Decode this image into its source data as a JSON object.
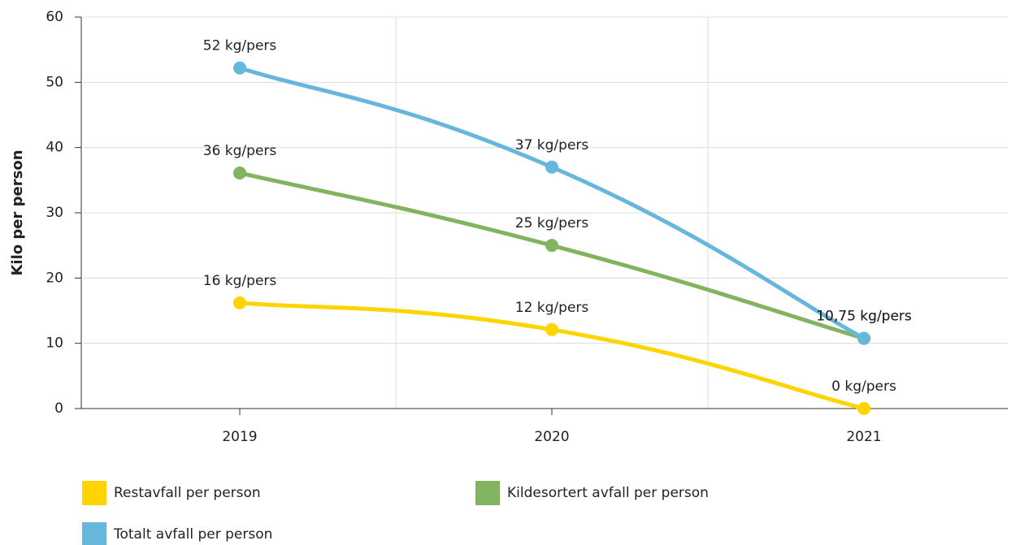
{
  "chart_data": {
    "type": "line",
    "y_label": "Kilo per person",
    "categories": [
      "2019",
      "2020",
      "2021"
    ],
    "series": [
      {
        "name": "Restavfall per person",
        "color": "#ffd400",
        "values": [
          16.2,
          12.1,
          0
        ],
        "value_labels": [
          "16 kg/pers",
          "12 kg/pers",
          "0 kg/pers"
        ]
      },
      {
        "name": "Kildesortert avfall per person",
        "color": "#82b460",
        "values": [
          36.1,
          25,
          10.75
        ],
        "value_labels": [
          "36 kg/pers",
          "25 kg/pers",
          "10,75 kg/pers"
        ]
      },
      {
        "name": "Totalt avfall per person",
        "color": "#67b6dc",
        "values": [
          52.2,
          37,
          10.75
        ],
        "value_labels": [
          "52 kg/pers",
          "37 kg/pers",
          "10,75 kg/pers"
        ]
      }
    ],
    "ylim": [
      0,
      60
    ],
    "yticks": [
      0,
      10,
      20,
      30,
      40,
      50,
      60
    ],
    "grid": true
  }
}
